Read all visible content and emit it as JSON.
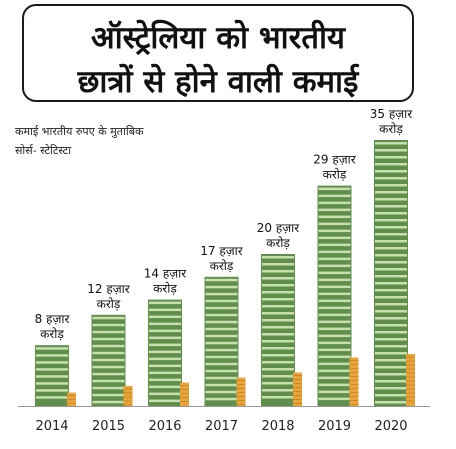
{
  "title_lines": [
    "ऑस्ट्रेलिया को भारतीय",
    "छात्रों से होने वाली कमाई"
  ],
  "unit_note": "कमाई भारतीय रुपए के मुताबिक",
  "source_note": "सोर्स- स्टेटिस्टा",
  "colors": {
    "cash_dark": "#5f8f4a",
    "cash_light": "#c9dfb2",
    "coin": "#e8a43a",
    "coin_dark": "#c07f1f",
    "axis": "#999999"
  },
  "chart_data": {
    "type": "bar",
    "categories": [
      "2014",
      "2015",
      "2016",
      "2017",
      "2018",
      "2019",
      "2020"
    ],
    "series": [
      {
        "values": [
          8,
          12,
          14,
          17,
          20,
          29,
          35
        ],
        "labels": [
          "8 हज़ार करोड़",
          "12 हज़ार करोड़",
          "14 हज़ार करोड़",
          "17 हज़ार करोड़",
          "20 हज़ार करोड़",
          "29 हज़ार करोड़",
          "35 हज़ार करोड़"
        ]
      }
    ],
    "ylim": [
      0,
      35
    ],
    "grid": false,
    "legend": "none"
  }
}
